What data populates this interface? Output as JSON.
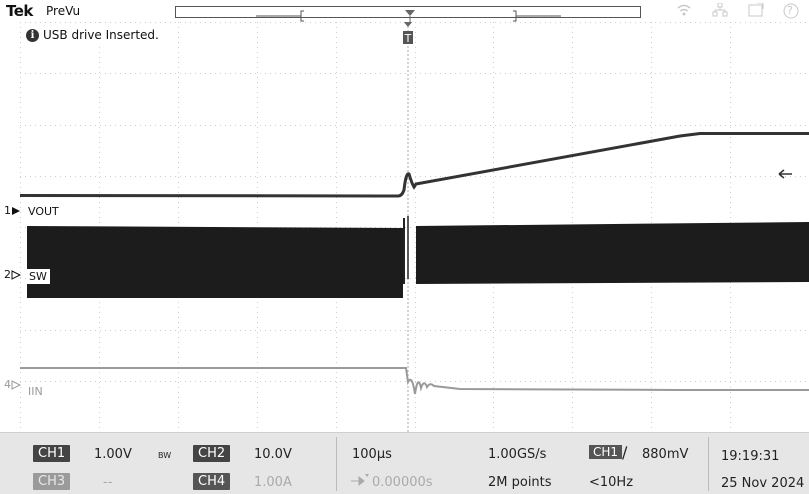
{
  "header": {
    "brand": "Tek",
    "mode": "PreVu",
    "icons": [
      "wifi-icon",
      "network-icon",
      "screenshot-icon",
      "help-icon"
    ],
    "help_glyph": "?"
  },
  "notice": {
    "icon": "info-icon",
    "glyph": "i",
    "text": "USB drive Inserted."
  },
  "markers": {
    "trigger_glyph": "T",
    "ch1_num": "1",
    "ch2_num": "2",
    "ch4_num": "4",
    "vout_label": "VOUT",
    "sw_label": "SW",
    "iin_label": "IIN"
  },
  "channels": {
    "ch1": {
      "label": "CH1",
      "scale": "1.00V",
      "bw": "BW"
    },
    "ch2": {
      "label": "CH2",
      "scale": "10.0V"
    },
    "ch3": {
      "label": "CH3",
      "scale": "--"
    },
    "ch4": {
      "label": "CH4",
      "scale": "1.00A"
    }
  },
  "horizontal": {
    "timebase": "100µs",
    "position": "0.00000s"
  },
  "acquisition": {
    "sample_rate": "1.00GS/s",
    "record_length": "2M points"
  },
  "trigger": {
    "source": "CH1",
    "slope_glyph": "∕",
    "level": "880mV",
    "frequency": "<10Hz"
  },
  "clock": {
    "time": "19:19:31",
    "date": "25 Nov 2024"
  },
  "colors": {
    "trace": "#333333",
    "iin_trace": "#9a9a9a",
    "grid": "#cfcfcf",
    "chip": "#444444"
  }
}
